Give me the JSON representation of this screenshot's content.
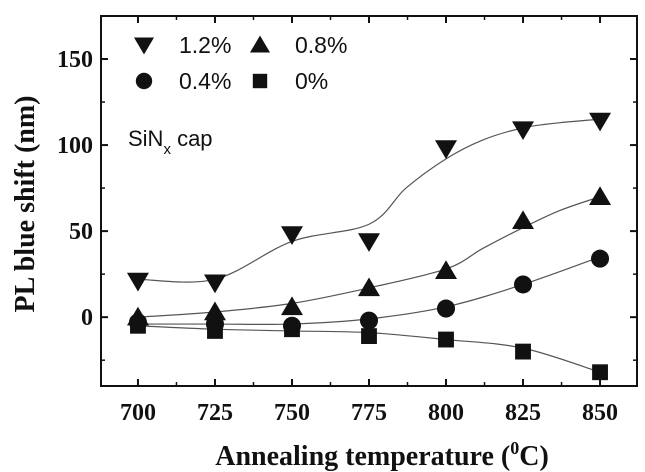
{
  "chart_data": {
    "type": "scatter",
    "xlabel": "Annealing temperature (",
    "xlabel_sup": "0",
    "xlabel_end": "C)",
    "ylabel": "PL blue shift (nm)",
    "x_ticks": [
      "700",
      "725",
      "750",
      "775",
      "800",
      "825",
      "850"
    ],
    "y_ticks": [
      "0",
      "50",
      "100",
      "150"
    ],
    "xlim": [
      688,
      862
    ],
    "ylim": [
      -40,
      175
    ],
    "x": [
      700,
      725,
      750,
      775,
      800,
      825,
      850
    ],
    "series": [
      {
        "name": "1.2%",
        "marker": "triangle-down",
        "values": [
          21,
          20,
          48,
          44,
          98,
          109,
          114
        ],
        "curve": [
          [
            700,
            22
          ],
          [
            725,
            22
          ],
          [
            750,
            44
          ],
          [
            775,
            54
          ],
          [
            787,
            75
          ],
          [
            800,
            92
          ],
          [
            812,
            103
          ],
          [
            825,
            110
          ],
          [
            837,
            113
          ],
          [
            850,
            115
          ]
        ]
      },
      {
        "name": "0.8%",
        "marker": "triangle-up",
        "values": [
          0,
          3,
          6,
          17,
          27,
          56,
          70
        ],
        "curve": [
          [
            700,
            0
          ],
          [
            725,
            3
          ],
          [
            750,
            8
          ],
          [
            775,
            17
          ],
          [
            800,
            28
          ],
          [
            812,
            40
          ],
          [
            825,
            52
          ],
          [
            837,
            62
          ],
          [
            850,
            70
          ]
        ]
      },
      {
        "name": "0.4%",
        "marker": "circle",
        "values": [
          -3,
          -4,
          -5,
          -2,
          5,
          19,
          34
        ],
        "curve": [
          [
            700,
            -4
          ],
          [
            725,
            -4
          ],
          [
            750,
            -4
          ],
          [
            775,
            -1
          ],
          [
            800,
            6
          ],
          [
            825,
            19
          ],
          [
            850,
            35
          ]
        ]
      },
      {
        "name": "0%",
        "marker": "square",
        "values": [
          -5,
          -8,
          -7,
          -11,
          -13,
          -20,
          -32
        ],
        "curve": [
          [
            700,
            -5
          ],
          [
            725,
            -7
          ],
          [
            750,
            -8
          ],
          [
            775,
            -9
          ],
          [
            800,
            -13
          ],
          [
            825,
            -18
          ],
          [
            850,
            -32
          ]
        ]
      }
    ],
    "legend_position": "top-left",
    "annotation": {
      "main": "SiN",
      "sub": "x",
      "tail": " cap"
    },
    "grid": false
  }
}
